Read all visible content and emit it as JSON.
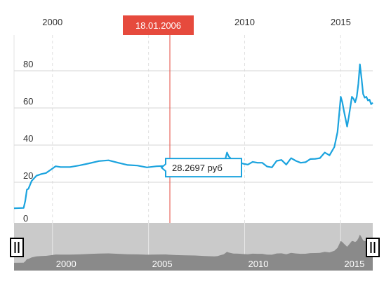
{
  "chart_data": {
    "type": "line",
    "xlabel": "",
    "ylabel": "",
    "x_ticks": [
      "2000",
      "2010",
      "2015"
    ],
    "y_ticks": [
      "0",
      "20",
      "40",
      "60",
      "80"
    ],
    "ylim": [
      0,
      90
    ],
    "xlim": [
      "1998-01",
      "2016-09"
    ],
    "grid": true,
    "series": [
      {
        "color": "#1ba3de",
        "points": [
          [
            "1998-01",
            6.0
          ],
          [
            "1998-07",
            6.2
          ],
          [
            "1998-08",
            10
          ],
          [
            "1998-09",
            16
          ],
          [
            "1998-10",
            16.5
          ],
          [
            "1998-12",
            20.7
          ],
          [
            "1999-03",
            23.5
          ],
          [
            "1999-06",
            24.4
          ],
          [
            "1999-09",
            25.0
          ],
          [
            "1999-12",
            26.8
          ],
          [
            "2000-03",
            28.6
          ],
          [
            "2000-06",
            28.2
          ],
          [
            "2000-12",
            28.2
          ],
          [
            "2001-06",
            29.1
          ],
          [
            "2001-12",
            30.2
          ],
          [
            "2002-06",
            31.4
          ],
          [
            "2002-12",
            31.8
          ],
          [
            "2003-06",
            30.5
          ],
          [
            "2003-12",
            29.3
          ],
          [
            "2004-06",
            29.0
          ],
          [
            "2004-12",
            28.0
          ],
          [
            "2005-06",
            28.6
          ],
          [
            "2005-12",
            28.8
          ],
          [
            "2006-01",
            28.27
          ],
          [
            "2006-06",
            27.1
          ],
          [
            "2006-12",
            26.3
          ],
          [
            "2007-06",
            26.0
          ],
          [
            "2007-12",
            24.6
          ],
          [
            "2008-06",
            23.5
          ],
          [
            "2008-08",
            24.2
          ],
          [
            "2008-10",
            27.0
          ],
          [
            "2008-12",
            29.4
          ],
          [
            "2009-02",
            36.0
          ],
          [
            "2009-03",
            34.0
          ],
          [
            "2009-06",
            31.2
          ],
          [
            "2009-09",
            31.0
          ],
          [
            "2009-12",
            30.0
          ],
          [
            "2010-03",
            29.5
          ],
          [
            "2010-06",
            31.0
          ],
          [
            "2010-09",
            30.5
          ],
          [
            "2010-12",
            30.5
          ],
          [
            "2011-03",
            28.5
          ],
          [
            "2011-06",
            28.0
          ],
          [
            "2011-09",
            31.5
          ],
          [
            "2011-12",
            32.0
          ],
          [
            "2012-03",
            29.5
          ],
          [
            "2012-06",
            33.0
          ],
          [
            "2012-09",
            31.5
          ],
          [
            "2012-12",
            30.5
          ],
          [
            "2013-03",
            30.8
          ],
          [
            "2013-06",
            32.5
          ],
          [
            "2013-09",
            32.6
          ],
          [
            "2013-12",
            33.0
          ],
          [
            "2014-03",
            36.0
          ],
          [
            "2014-06",
            34.5
          ],
          [
            "2014-09",
            39.0
          ],
          [
            "2014-11",
            47.0
          ],
          [
            "2014-12",
            56.3
          ],
          [
            "2015-01",
            66.0
          ],
          [
            "2015-02",
            63.0
          ],
          [
            "2015-03",
            58.5
          ],
          [
            "2015-05",
            50.0
          ],
          [
            "2015-06",
            55.0
          ],
          [
            "2015-08",
            66.0
          ],
          [
            "2015-09",
            65.0
          ],
          [
            "2015-10",
            63.0
          ],
          [
            "2015-11",
            66.0
          ],
          [
            "2015-12",
            73.0
          ],
          [
            "2016-01",
            83.5
          ],
          [
            "2016-02",
            76.0
          ],
          [
            "2016-03",
            67.5
          ],
          [
            "2016-04",
            65.5
          ],
          [
            "2016-05",
            66.0
          ],
          [
            "2016-06",
            64.0
          ],
          [
            "2016-07",
            64.5
          ],
          [
            "2016-08",
            62.0
          ],
          [
            "2016-09",
            62.8
          ]
        ]
      }
    ],
    "annotations": {
      "crosshair_date": "18.01.2006",
      "crosshair_x": "2006-01",
      "tooltip_value": 28.2697,
      "tooltip_text": "28.2697 руб"
    },
    "navigator": {
      "x_ticks": [
        "2000",
        "2005",
        "2010",
        "2015"
      ]
    }
  },
  "colors": {
    "line": "#1ba3de",
    "crosshair": "#e64a3d",
    "badge_bg": "#e64a3d",
    "grid": "#d6d6d6",
    "navigator_bg": "#cacaca",
    "navigator_fill": "#8a8a8a"
  }
}
